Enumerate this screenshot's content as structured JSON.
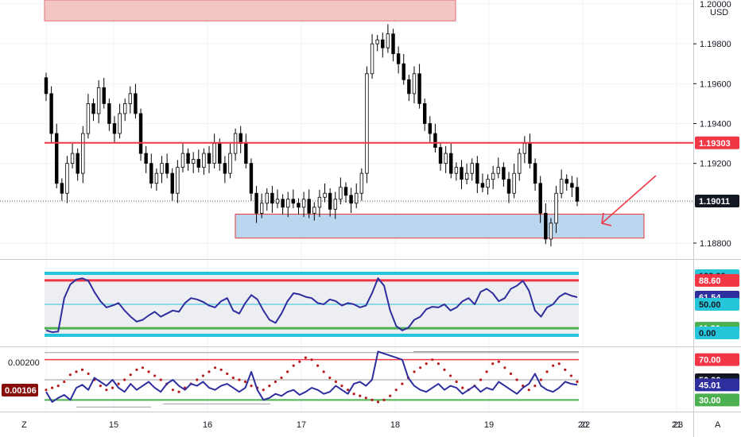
{
  "chart_data": [
    {
      "type": "candlestick",
      "currency": "USD",
      "ylim": [
        1.1872,
        1.2002
      ],
      "price_ticks": [
        "1.20000",
        "1.19800",
        "1.19600",
        "1.19400",
        "1.19200",
        "1.18800"
      ],
      "date_ticks": [
        "15",
        "16",
        "17",
        "18",
        "19",
        "20",
        "21",
        "22",
        "23"
      ],
      "resistance_level": 1.19303,
      "resistance_label": "1.19303",
      "last_price": 1.19011,
      "last_price_label": "1.19011",
      "support_zone": [
        1.18825,
        1.18945
      ],
      "supply_zone_bottom": 1.19915,
      "closes": [
        1.1955,
        1.1935,
        1.191,
        1.1905,
        1.192,
        1.1925,
        1.1915,
        1.1935,
        1.195,
        1.1945,
        1.1958,
        1.195,
        1.194,
        1.1935,
        1.1945,
        1.195,
        1.1955,
        1.1945,
        1.1925,
        1.192,
        1.191,
        1.1915,
        1.192,
        1.1915,
        1.1905,
        1.1918,
        1.1925,
        1.192,
        1.1922,
        1.1918,
        1.1925,
        1.192,
        1.193,
        1.192,
        1.1915,
        1.1925,
        1.1935,
        1.193,
        1.192,
        1.1905,
        1.1895,
        1.19,
        1.1905,
        1.19,
        1.1902,
        1.1898,
        1.1902,
        1.19,
        1.1898,
        1.1902,
        1.1895,
        1.1898,
        1.1903,
        1.1905,
        1.1897,
        1.1902,
        1.1908,
        1.1904,
        1.19,
        1.1905,
        1.1915,
        1.1965,
        1.198,
        1.1982,
        1.1978,
        1.1985,
        1.1975,
        1.197,
        1.1962,
        1.1955,
        1.1965,
        1.195,
        1.194,
        1.1935,
        1.1928,
        1.192,
        1.1925,
        1.1915,
        1.1918,
        1.1912,
        1.1915,
        1.192,
        1.191,
        1.1908,
        1.1912,
        1.1915,
        1.1918,
        1.1912,
        1.1905,
        1.1915,
        1.1925,
        1.193,
        1.192,
        1.191,
        1.1895,
        1.1882,
        1.189,
        1.1905,
        1.1912,
        1.191,
        1.1908,
        1.1901
      ]
    },
    {
      "type": "line",
      "name": "oscillator-1",
      "ylim": [
        0,
        100
      ],
      "ticks": [
        "100.00",
        "88.60",
        "61.54",
        "50.00",
        "11.30",
        "0.00"
      ],
      "levels": [
        100,
        88.6,
        50,
        11.3,
        0
      ],
      "last_value": 61.54,
      "values": [
        8,
        5,
        6,
        60,
        82,
        90,
        92,
        88,
        70,
        55,
        45,
        48,
        52,
        40,
        30,
        22,
        25,
        32,
        38,
        30,
        35,
        40,
        38,
        52,
        60,
        58,
        54,
        48,
        45,
        55,
        60,
        40,
        35,
        52,
        65,
        58,
        40,
        25,
        20,
        35,
        55,
        68,
        66,
        62,
        60,
        52,
        50,
        58,
        55,
        48,
        52,
        50,
        45,
        48,
        68,
        92,
        80,
        40,
        15,
        8,
        12,
        25,
        30,
        42,
        46,
        45,
        50,
        40,
        45,
        55,
        60,
        50,
        70,
        75,
        68,
        55,
        60,
        75,
        80,
        88,
        72,
        40,
        30,
        45,
        50,
        62,
        68,
        64,
        61.54
      ]
    },
    {
      "type": "line",
      "name": "oscillator-2",
      "ylim": [
        20,
        80
      ],
      "ticks": [
        "70.00",
        "50.00",
        "45.01",
        "30.00"
      ],
      "levels": [
        70,
        50,
        30
      ],
      "left_label": "0.00200",
      "left_value_label": "0.00106",
      "last_value": 45.01,
      "values": [
        38,
        28,
        32,
        35,
        30,
        42,
        45,
        40,
        52,
        48,
        44,
        50,
        42,
        38,
        46,
        40,
        44,
        48,
        42,
        38,
        46,
        50,
        44,
        40,
        46,
        44,
        48,
        42,
        40,
        44,
        46,
        42,
        38,
        42,
        58,
        40,
        30,
        32,
        36,
        34,
        38,
        40,
        35,
        38,
        42,
        40,
        36,
        38,
        44,
        40,
        36,
        46,
        48,
        44,
        50,
        78,
        76,
        74,
        72,
        70,
        52,
        44,
        40,
        38,
        42,
        46,
        40,
        44,
        42,
        36,
        40,
        44,
        38,
        42,
        40,
        48,
        44,
        40,
        36,
        42,
        46,
        56,
        44,
        40,
        38,
        42,
        48,
        46,
        45.01
      ],
      "dots": [
        40,
        42,
        44,
        48,
        55,
        58,
        60,
        56,
        50,
        44,
        40,
        42,
        46,
        50,
        55,
        60,
        62,
        58,
        54,
        50,
        46,
        40,
        38,
        42,
        46,
        50,
        54,
        58,
        62,
        60,
        56,
        52,
        50,
        48,
        44,
        42,
        40,
        44,
        48,
        52,
        58,
        64,
        68,
        72,
        70,
        64,
        58,
        52,
        48,
        44,
        40,
        36,
        34,
        32,
        30,
        28,
        30,
        34,
        40,
        46,
        52,
        58,
        62,
        66,
        70,
        66,
        60,
        54,
        48,
        42,
        40,
        44,
        50,
        58,
        66,
        68,
        62,
        56,
        50,
        44,
        40,
        44,
        50,
        58,
        64,
        66,
        60,
        54,
        48
      ]
    }
  ],
  "colors": {
    "candle": "#000000",
    "resistance": "#f23645",
    "zone_fill": "#bbd7f0",
    "zone_border": "#e53935",
    "supply_fill": "#f3c6c4",
    "supply_border": "#e57373",
    "arrow": "#f23645",
    "osc_line": "#2e2e9e",
    "cyan": "#26c6da",
    "green": "#4caf50",
    "dots": "#b71c1c",
    "badge_dark": "#131722"
  },
  "time_axis_left": "Z",
  "time_axis_right": "A"
}
